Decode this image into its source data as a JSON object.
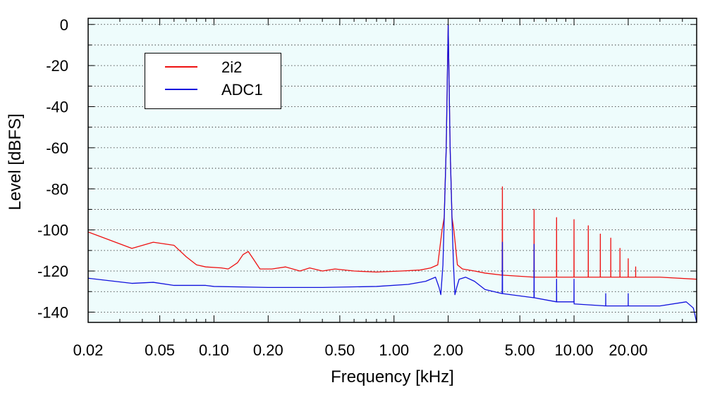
{
  "chart_data": {
    "type": "line",
    "xlabel": "Frequency [kHz]",
    "ylabel": "Level [dBFS]",
    "xscale": "log",
    "xlim": [
      0.02,
      48
    ],
    "ylim": [
      -145,
      3
    ],
    "grid": "horizontal dotted",
    "background": "#eefcfc",
    "legend_position": "top-left",
    "xticks": [
      {
        "value": 0.02,
        "label": "0.02"
      },
      {
        "value": 0.05,
        "label": "0.05"
      },
      {
        "value": 0.1,
        "label": "0.10"
      },
      {
        "value": 0.2,
        "label": "0.20"
      },
      {
        "value": 0.5,
        "label": "0.50"
      },
      {
        "value": 1,
        "label": "1.00"
      },
      {
        "value": 2,
        "label": "2.00"
      },
      {
        "value": 5,
        "label": "5.00"
      },
      {
        "value": 10,
        "label": "10.00"
      },
      {
        "value": 20,
        "label": "20.00"
      }
    ],
    "yticks": [
      0,
      -20,
      -40,
      -60,
      -80,
      -100,
      -120,
      -140
    ],
    "series": [
      {
        "name": "2i2",
        "color": "#ee1111",
        "values": [
          [
            0.02,
            -101
          ],
          [
            0.023,
            -103
          ],
          [
            0.035,
            -109
          ],
          [
            0.046,
            -106
          ],
          [
            0.06,
            -107.5
          ],
          [
            0.07,
            -113
          ],
          [
            0.08,
            -117
          ],
          [
            0.09,
            -118
          ],
          [
            0.11,
            -118.5
          ],
          [
            0.12,
            -119
          ],
          [
            0.135,
            -116
          ],
          [
            0.145,
            -112
          ],
          [
            0.155,
            -110.5
          ],
          [
            0.165,
            -114
          ],
          [
            0.18,
            -119
          ],
          [
            0.21,
            -119
          ],
          [
            0.25,
            -118
          ],
          [
            0.3,
            -120
          ],
          [
            0.34,
            -118.5
          ],
          [
            0.4,
            -120
          ],
          [
            0.47,
            -119
          ],
          [
            0.6,
            -120
          ],
          [
            0.8,
            -120.5
          ],
          [
            1.1,
            -120
          ],
          [
            1.4,
            -119.5
          ],
          [
            1.6,
            -118.5
          ],
          [
            1.75,
            -117
          ],
          [
            1.85,
            -100
          ],
          [
            1.9,
            -94
          ],
          [
            1.95,
            -60
          ],
          [
            2.0,
            0
          ],
          [
            2.05,
            -60
          ],
          [
            2.1,
            -94
          ],
          [
            2.15,
            -100
          ],
          [
            2.25,
            -117
          ],
          [
            2.4,
            -119
          ],
          [
            2.8,
            -120
          ],
          [
            3.2,
            -121
          ],
          [
            3.99,
            -122
          ],
          [
            4.0,
            -79
          ],
          [
            4.01,
            -122
          ],
          [
            5.99,
            -123
          ],
          [
            6.0,
            -90
          ],
          [
            6.01,
            -123
          ],
          [
            7.99,
            -123
          ],
          [
            8.0,
            -94
          ],
          [
            8.01,
            -123
          ],
          [
            9.99,
            -123
          ],
          [
            10.0,
            -95
          ],
          [
            10.01,
            -123
          ],
          [
            11.99,
            -123
          ],
          [
            12.0,
            -98
          ],
          [
            12.01,
            -123
          ],
          [
            13.99,
            -123
          ],
          [
            14.0,
            -102
          ],
          [
            14.01,
            -123
          ],
          [
            15.99,
            -123
          ],
          [
            16.0,
            -104
          ],
          [
            16.01,
            -123
          ],
          [
            17.99,
            -123
          ],
          [
            18.0,
            -109
          ],
          [
            18.01,
            -123
          ],
          [
            19.99,
            -123
          ],
          [
            20.0,
            -114
          ],
          [
            20.01,
            -123
          ],
          [
            21.99,
            -123
          ],
          [
            22.0,
            -118
          ],
          [
            22.01,
            -123
          ],
          [
            30,
            -123
          ],
          [
            48,
            -124
          ]
        ]
      },
      {
        "name": "ADC1",
        "color": "#1111dd",
        "values": [
          [
            0.02,
            -123.5
          ],
          [
            0.035,
            -126
          ],
          [
            0.046,
            -125.5
          ],
          [
            0.06,
            -127
          ],
          [
            0.09,
            -127
          ],
          [
            0.1,
            -127.5
          ],
          [
            0.2,
            -128
          ],
          [
            0.4,
            -128
          ],
          [
            0.8,
            -127.5
          ],
          [
            1.2,
            -126.5
          ],
          [
            1.5,
            -125
          ],
          [
            1.7,
            -123
          ],
          [
            1.78,
            -128
          ],
          [
            1.82,
            -131.5
          ],
          [
            1.87,
            -117
          ],
          [
            1.9,
            -95
          ],
          [
            1.95,
            -60
          ],
          [
            2.0,
            0
          ],
          [
            2.05,
            -60
          ],
          [
            2.1,
            -95
          ],
          [
            2.14,
            -117
          ],
          [
            2.18,
            -131.5
          ],
          [
            2.23,
            -128
          ],
          [
            2.3,
            -124
          ],
          [
            2.5,
            -123
          ],
          [
            2.8,
            -125
          ],
          [
            3.2,
            -129
          ],
          [
            3.99,
            -131
          ],
          [
            4.0,
            -106
          ],
          [
            4.01,
            -131
          ],
          [
            5.99,
            -133
          ],
          [
            6.0,
            -107
          ],
          [
            6.01,
            -133
          ],
          [
            7.99,
            -135
          ],
          [
            8.0,
            -124
          ],
          [
            8.01,
            -135
          ],
          [
            9.99,
            -135
          ],
          [
            10.0,
            -124
          ],
          [
            10.01,
            -136
          ],
          [
            14.99,
            -137
          ],
          [
            15.0,
            -131
          ],
          [
            15.01,
            -137
          ],
          [
            19.99,
            -137
          ],
          [
            20.0,
            -131
          ],
          [
            20.01,
            -137
          ],
          [
            30,
            -137
          ],
          [
            42,
            -135
          ],
          [
            46,
            -138
          ],
          [
            48,
            -145
          ]
        ]
      }
    ]
  }
}
